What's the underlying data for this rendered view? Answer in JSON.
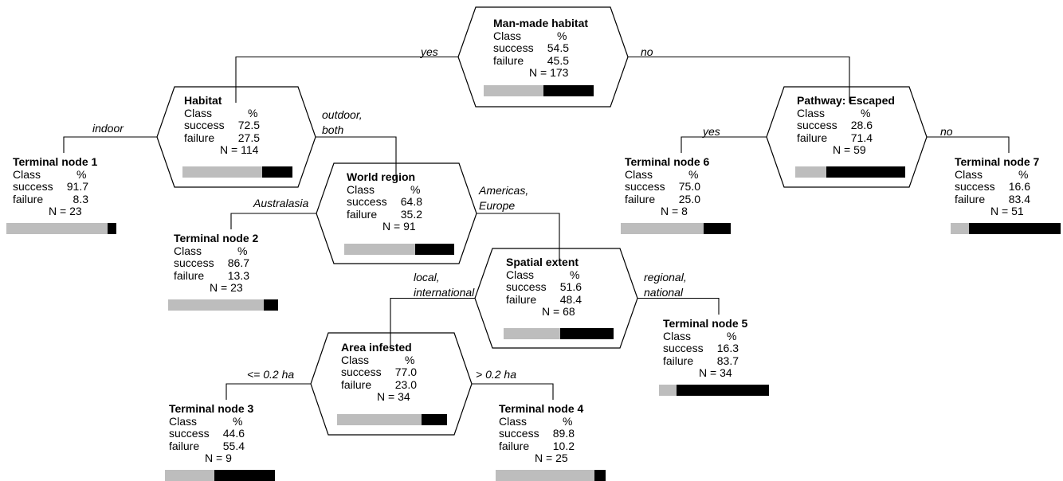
{
  "colors": {
    "success": "#bdbdbd",
    "failure": "#000000",
    "line": "#000000"
  },
  "nodes": [
    {
      "id": "root",
      "title": "Man-made habitat",
      "class_header": "Class",
      "pct_header": "%",
      "success_label": "success",
      "success": "54.5",
      "failure_label": "failure",
      "failure": "45.5",
      "n": "N = 173",
      "terminal": false
    },
    {
      "id": "habitat",
      "title": "Habitat",
      "class_header": "Class",
      "pct_header": "%",
      "success_label": "success",
      "success": "72.5",
      "failure_label": "failure",
      "failure": "27.5",
      "n": "N = 114",
      "terminal": false
    },
    {
      "id": "pathway",
      "title": "Pathway: Escaped",
      "class_header": "Class",
      "pct_header": "%",
      "success_label": "success",
      "success": "28.6",
      "failure_label": "failure",
      "failure": "71.4",
      "n": "N = 59",
      "terminal": false
    },
    {
      "id": "t1",
      "title": "Terminal node 1",
      "class_header": "Class",
      "pct_header": "%",
      "success_label": "success",
      "success": "91.7",
      "failure_label": "failure",
      "failure": "8.3",
      "n": "N = 23",
      "terminal": true
    },
    {
      "id": "world",
      "title": "World region",
      "class_header": "Class",
      "pct_header": "%",
      "success_label": "success",
      "success": "64.8",
      "failure_label": "failure",
      "failure": "35.2",
      "n": "N = 91",
      "terminal": false
    },
    {
      "id": "t6",
      "title": "Terminal node 6",
      "class_header": "Class",
      "pct_header": "%",
      "success_label": "success",
      "success": "75.0",
      "failure_label": "failure",
      "failure": "25.0",
      "n": "N = 8",
      "terminal": true
    },
    {
      "id": "t7",
      "title": "Terminal node 7",
      "class_header": "Class",
      "pct_header": "%",
      "success_label": "success",
      "success": "16.6",
      "failure_label": "failure",
      "failure": "83.4",
      "n": "N = 51",
      "terminal": true
    },
    {
      "id": "t2",
      "title": "Terminal node 2",
      "class_header": "Class",
      "pct_header": "%",
      "success_label": "success",
      "success": "86.7",
      "failure_label": "failure",
      "failure": "13.3",
      "n": "N = 23",
      "terminal": true
    },
    {
      "id": "spatial",
      "title": "Spatial extent",
      "class_header": "Class",
      "pct_header": "%",
      "success_label": "success",
      "success": "51.6",
      "failure_label": "failure",
      "failure": "48.4",
      "n": "N = 68",
      "terminal": false
    },
    {
      "id": "t5",
      "title": "Terminal node 5",
      "class_header": "Class",
      "pct_header": "%",
      "success_label": "success",
      "success": "16.3",
      "failure_label": "failure",
      "failure": "83.7",
      "n": "N = 34",
      "terminal": true
    },
    {
      "id": "area",
      "title": "Area infested",
      "class_header": "Class",
      "pct_header": "%",
      "success_label": "success",
      "success": "77.0",
      "failure_label": "failure",
      "failure": "23.0",
      "n": "N = 34",
      "terminal": false
    },
    {
      "id": "t3",
      "title": "Terminal node 3",
      "class_header": "Class",
      "pct_header": "%",
      "success_label": "success",
      "success": "44.6",
      "failure_label": "failure",
      "failure": "55.4",
      "n": "N = 9",
      "terminal": true
    },
    {
      "id": "t4",
      "title": "Terminal node 4",
      "class_header": "Class",
      "pct_header": "%",
      "success_label": "success",
      "success": "89.8",
      "failure_label": "failure",
      "failure": "10.2",
      "n": "N = 25",
      "terminal": true
    }
  ],
  "edges": [
    {
      "from": "root",
      "to": "habitat",
      "side": "left",
      "label_lines": [
        "yes"
      ]
    },
    {
      "from": "root",
      "to": "pathway",
      "side": "right",
      "label_lines": [
        "no"
      ]
    },
    {
      "from": "habitat",
      "to": "t1",
      "side": "left",
      "label_lines": [
        "indoor"
      ]
    },
    {
      "from": "habitat",
      "to": "world",
      "side": "right",
      "label_lines": [
        "outdoor,",
        "both"
      ]
    },
    {
      "from": "pathway",
      "to": "t6",
      "side": "left",
      "label_lines": [
        "yes"
      ]
    },
    {
      "from": "pathway",
      "to": "t7",
      "side": "right",
      "label_lines": [
        "no"
      ]
    },
    {
      "from": "world",
      "to": "t2",
      "side": "left",
      "label_lines": [
        "Australasia"
      ]
    },
    {
      "from": "world",
      "to": "spatial",
      "side": "right",
      "label_lines": [
        "Americas,",
        "Europe"
      ]
    },
    {
      "from": "spatial",
      "to": "area",
      "side": "left",
      "label_lines": [
        "local,",
        "international"
      ]
    },
    {
      "from": "spatial",
      "to": "t5",
      "side": "right",
      "label_lines": [
        "regional,",
        "national"
      ]
    },
    {
      "from": "area",
      "to": "t3",
      "side": "left",
      "label_lines": [
        "<= 0.2 ha"
      ]
    },
    {
      "from": "area",
      "to": "t4",
      "side": "right",
      "label_lines": [
        "> 0.2 ha"
      ]
    }
  ]
}
